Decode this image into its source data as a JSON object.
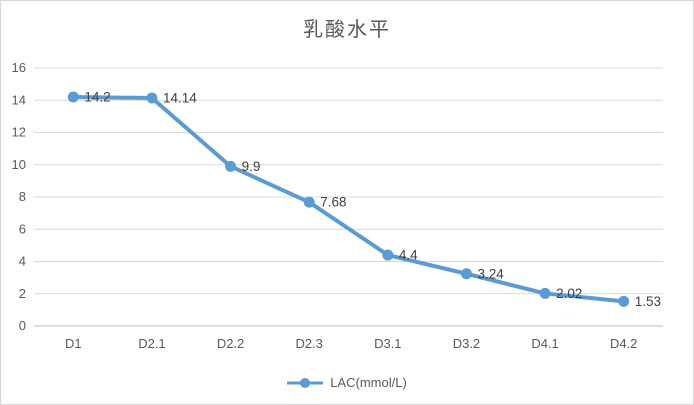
{
  "chart_data": {
    "type": "line",
    "title": "乳酸水平",
    "categories": [
      "D1",
      "D2.1",
      "D2.2",
      "D2.3",
      "D3.1",
      "D3.2",
      "D4.1",
      "D4.2"
    ],
    "series": [
      {
        "name": "LAC(mmol/L)",
        "values": [
          14.2,
          14.14,
          9.9,
          7.68,
          4.4,
          3.24,
          2.02,
          1.53
        ],
        "color": "#5B9BD5"
      }
    ],
    "data_labels": [
      "14.2",
      "14.14",
      "9.9",
      "7.68",
      "4.4",
      "3.24",
      "2.02",
      "1.53"
    ],
    "xlabel": "",
    "ylabel": "",
    "ylim": [
      0,
      16
    ],
    "yticks": [
      0,
      2,
      4,
      6,
      8,
      10,
      12,
      14,
      16
    ],
    "grid": true,
    "legend_position": "bottom",
    "colors": {
      "line": "#5B9BD5",
      "gridline": "#d9d9d9",
      "axis_line": "#bfbfbf",
      "tick_text": "#595959",
      "data_label_text": "#3f3f3f",
      "title_text": "#595959",
      "border": "#d7d7d7"
    }
  }
}
